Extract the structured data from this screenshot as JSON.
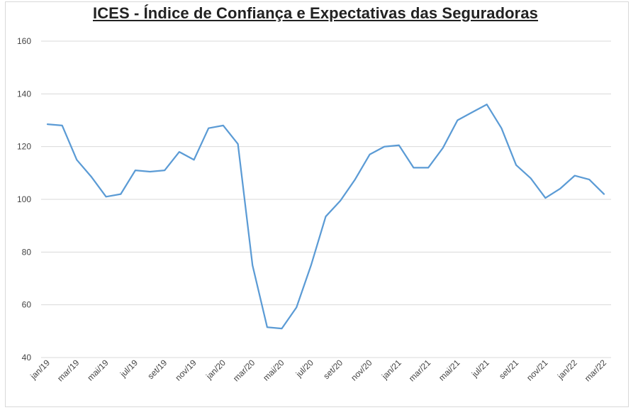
{
  "chart_data": {
    "type": "line",
    "title": "ICES - Índice de Confiança e Expectativas das Seguradoras",
    "xlabel": "",
    "ylabel": "",
    "ylim": [
      40,
      160
    ],
    "yticks": [
      40,
      60,
      80,
      100,
      120,
      140,
      160
    ],
    "grid": true,
    "legend": "none",
    "line_color": "#5b9bd5",
    "x": [
      "jan/19",
      "fev/19",
      "mar/19",
      "abr/19",
      "mai/19",
      "jun/19",
      "jul/19",
      "ago/19",
      "set/19",
      "out/19",
      "nov/19",
      "dez/19",
      "jan/20",
      "fev/20",
      "mar/20",
      "abr/20",
      "mai/20",
      "jun/20",
      "jul/20",
      "ago/20",
      "set/20",
      "out/20",
      "nov/20",
      "dez/20",
      "jan/21",
      "fev/21",
      "mar/21",
      "abr/21",
      "mai/21",
      "jun/21",
      "jul/21",
      "ago/21",
      "set/21",
      "out/21",
      "nov/21",
      "dez/21",
      "jan/22",
      "fev/22",
      "mar/22"
    ],
    "xtick_labels": [
      "jan/19",
      "mar/19",
      "mai/19",
      "jul/19",
      "set/19",
      "nov/19",
      "jan/20",
      "mar/20",
      "mai/20",
      "jul/20",
      "set/20",
      "nov/20",
      "jan/21",
      "mar/21",
      "mai/21",
      "jul/21",
      "set/21",
      "nov/21",
      "jan/22",
      "mar/22"
    ],
    "series": [
      {
        "name": "ICES",
        "values": [
          128.5,
          128.0,
          115.0,
          108.5,
          101.0,
          102.0,
          111.0,
          110.5,
          111.0,
          118.0,
          115.0,
          127.0,
          128.0,
          121.0,
          75.0,
          51.5,
          51.0,
          59.0,
          75.0,
          93.5,
          99.5,
          107.5,
          117.0,
          120.0,
          120.5,
          112.0,
          112.0,
          119.5,
          130.0,
          133.0,
          136.0,
          127.0,
          113.0,
          108.0,
          100.5,
          104.0,
          109.0,
          107.5,
          102.0
        ]
      }
    ]
  }
}
